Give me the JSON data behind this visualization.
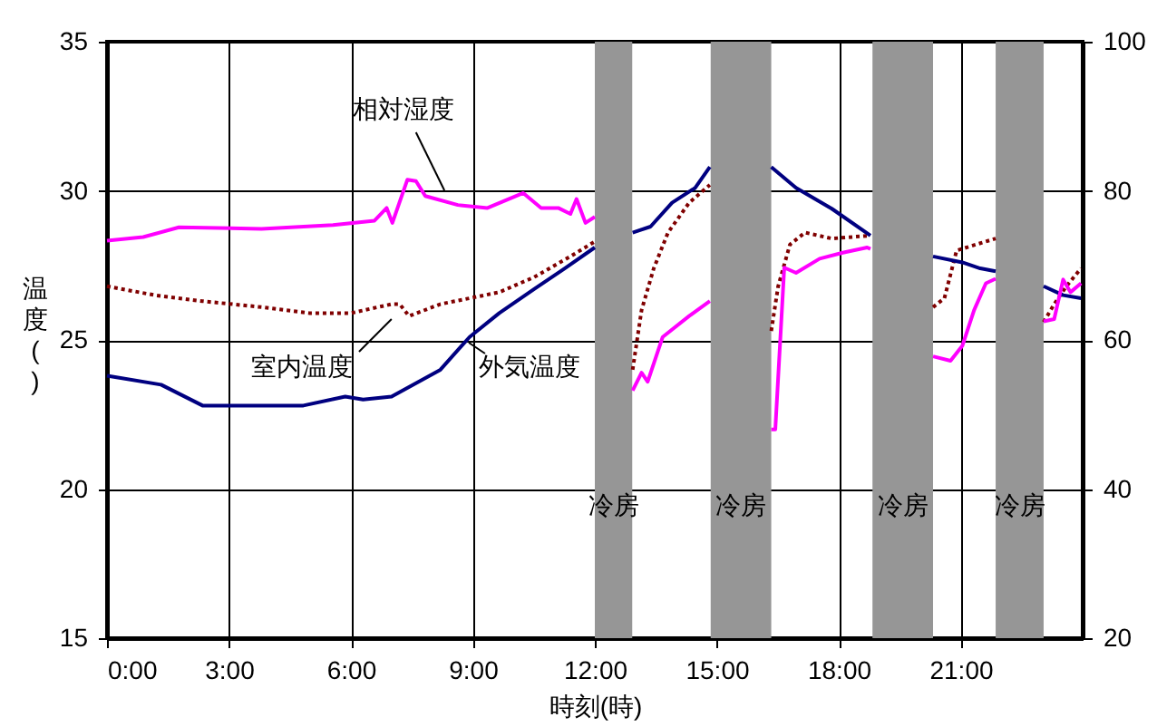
{
  "chart_data": {
    "type": "line",
    "xlabel": "時刻(時)",
    "ylabel": "温度( )",
    "xlim": [
      0,
      24
    ],
    "xticks": [
      {
        "value": 0,
        "label": "0:00"
      },
      {
        "value": 3,
        "label": "3:00"
      },
      {
        "value": 6,
        "label": "6:00"
      },
      {
        "value": 9,
        "label": "9:00"
      },
      {
        "value": 12,
        "label": "12:00"
      },
      {
        "value": 15,
        "label": "15:00"
      },
      {
        "value": 18,
        "label": "18:00"
      },
      {
        "value": 21,
        "label": "21:00"
      }
    ],
    "ylim": [
      15,
      35
    ],
    "yticks": [
      15,
      20,
      25,
      30,
      35
    ],
    "y2lim": [
      20,
      100
    ],
    "y2ticks": [
      20,
      40,
      60,
      80,
      100
    ],
    "grid": true,
    "series": [
      {
        "name": "相対湿度",
        "color": "#ff00ff",
        "axis": "y2",
        "line_style": "solid",
        "x": [
          0,
          0.89,
          1.77,
          3.8,
          5.56,
          6.58,
          6.88,
          7.02,
          7.39,
          7.6,
          7.83,
          8.63,
          9.36,
          10.24,
          10.68,
          11.1,
          11.4,
          11.55,
          11.77,
          12.0,
          12.5,
          12.93,
          13.15,
          13.3,
          13.67,
          14.32,
          14.83,
          15.5,
          16.34,
          16.44,
          16.66,
          16.95,
          17.53,
          18.1,
          18.7,
          18.78,
          19.5,
          20.32,
          20.75,
          21.04,
          21.33,
          21.62,
          21.86,
          22.5,
          23.04,
          23.3,
          23.52,
          23.7,
          23.96
        ],
        "values": [
          73.3,
          73.8,
          75.1,
          74.9,
          75.4,
          76.0,
          77.7,
          75.7,
          81.5,
          81.3,
          79.3,
          78.1,
          77.7,
          79.7,
          77.7,
          77.7,
          76.9,
          78.9,
          75.7,
          76.5,
          null,
          53.2,
          55.6,
          54.4,
          60.4,
          63.2,
          65.2,
          null,
          48.0,
          48.0,
          69.7,
          69.0,
          70.9,
          71.7,
          72.4,
          72.2,
          null,
          57.8,
          57.2,
          59.2,
          64.0,
          67.6,
          68.2,
          null,
          62.5,
          62.8,
          68.1,
          66.4,
          67.6
        ]
      },
      {
        "name": "室内温度",
        "color": "#800000",
        "line_style": "dotted",
        "x": [
          0,
          1.18,
          2.35,
          3.8,
          4.97,
          6.0,
          7.0,
          7.2,
          7.43,
          8.2,
          9.65,
          10.5,
          11.4,
          12.0,
          12.5,
          12.93,
          13.15,
          13.45,
          13.8,
          14.32,
          14.83,
          15.5,
          16.34,
          16.51,
          16.8,
          17.17,
          17.83,
          18.78,
          19.5,
          20.32,
          20.6,
          20.9,
          21.86,
          22.5,
          23.04,
          23.3,
          23.6,
          23.96
        ],
        "values": [
          26.8,
          26.5,
          26.3,
          26.1,
          25.9,
          25.9,
          26.2,
          26.2,
          25.8,
          26.2,
          26.6,
          27.1,
          27.8,
          28.3,
          null,
          24.0,
          26.0,
          27.4,
          28.6,
          29.6,
          30.2,
          null,
          25.3,
          26.8,
          28.2,
          28.6,
          28.4,
          28.5,
          null,
          26.1,
          26.4,
          28.0,
          28.4,
          null,
          25.6,
          26.2,
          26.8,
          27.4
        ]
      },
      {
        "name": "外気温度",
        "color": "#000080",
        "line_style": "solid",
        "x": [
          0,
          1.33,
          2.35,
          3.8,
          4.83,
          5.86,
          6.3,
          7.0,
          8.2,
          8.92,
          9.65,
          10.5,
          11.26,
          12.0,
          12.5,
          12.93,
          13.37,
          13.9,
          14.47,
          14.83,
          15.5,
          16.34,
          16.95,
          17.83,
          18.78,
          19.5,
          20.32,
          21.04,
          21.48,
          21.86,
          22.5,
          23.04,
          23.52,
          23.96
        ],
        "values": [
          23.8,
          23.5,
          22.8,
          22.8,
          22.8,
          23.1,
          23.0,
          23.1,
          24.0,
          25.1,
          25.9,
          26.7,
          27.4,
          28.1,
          null,
          28.6,
          28.8,
          29.6,
          30.1,
          30.8,
          null,
          30.8,
          30.1,
          29.4,
          28.5,
          null,
          27.8,
          27.6,
          27.4,
          27.3,
          null,
          26.8,
          26.5,
          26.4
        ]
      }
    ],
    "bands": [
      {
        "axis": "x",
        "from": 12.0,
        "to": 12.92,
        "label": "冷房",
        "color": "#969696"
      },
      {
        "axis": "x",
        "from": 14.85,
        "to": 16.34,
        "label": "冷房",
        "color": "#969696"
      },
      {
        "axis": "x",
        "from": 18.83,
        "to": 20.32,
        "label": "冷房",
        "color": "#969696"
      },
      {
        "axis": "x",
        "from": 21.86,
        "to": 23.04,
        "label": "冷房",
        "color": "#969696"
      }
    ]
  }
}
